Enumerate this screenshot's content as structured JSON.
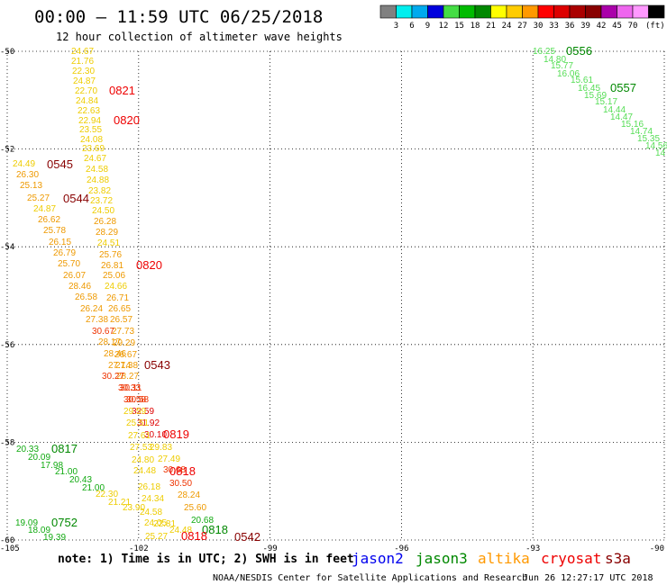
{
  "header": {
    "title": "00:00 – 11:59 UTC 06/25/2018",
    "subtitle": "12 hour collection of altimeter wave heights"
  },
  "colorbar": {
    "unit": "(ft)",
    "swatches": [
      "#808080",
      "#00eeee",
      "#00aaee",
      "#0000dd",
      "#44dd44",
      "#00bb00",
      "#008800",
      "#ffff00",
      "#ffcc00",
      "#ff9900",
      "#ff0000",
      "#dd0000",
      "#aa0000",
      "#880000",
      "#aa00aa",
      "#ee66ee",
      "#ff99ff",
      "#000000"
    ],
    "labels": [
      "3",
      "6",
      "9",
      "12",
      "15",
      "18",
      "21",
      "24",
      "27",
      "30",
      "33",
      "36",
      "39",
      "42",
      "45",
      "70"
    ]
  },
  "map": {
    "lon_range": [
      -105,
      -90
    ],
    "lat_range": [
      -60,
      -50
    ],
    "lon_ticks": [
      "-105",
      "-102",
      "-99",
      "-96",
      "-93",
      "-90"
    ],
    "lat_ticks": [
      "-50",
      "-52",
      "-54",
      "-56",
      "-58",
      "-60"
    ],
    "grid": "dotted"
  },
  "colors": {
    "jason2": "#0000ee",
    "jason3": "#008800",
    "altika": "#ff9900",
    "cryosat": "#ee0000",
    "s3a": "#880000",
    "band24": "#eecc00",
    "band27": "#ee9900",
    "band30": "#ee3300",
    "band33": "#dd0000",
    "band15": "#55dd55",
    "band18": "#11aa11"
  },
  "labels": [
    [
      "24.67",
      79,
      56,
      "band24"
    ],
    [
      "21.76",
      79,
      67,
      "band24"
    ],
    [
      "22.30",
      80,
      78,
      "band24"
    ],
    [
      "24.87",
      81,
      89,
      "band24"
    ],
    [
      "22.70",
      83,
      100,
      "band24"
    ],
    [
      "24.84",
      84,
      111,
      "band24"
    ],
    [
      "22.63",
      86,
      122,
      "band24"
    ],
    [
      "22.94",
      87,
      133,
      "band24"
    ],
    [
      "23.55",
      88,
      143,
      "band24"
    ],
    [
      "24.08",
      89,
      154,
      "band24"
    ],
    [
      "23.69",
      91,
      164,
      "band24"
    ],
    [
      "24.67",
      93,
      175,
      "band24"
    ],
    [
      "24.58",
      95,
      187,
      "band24"
    ],
    [
      "24.88",
      96,
      199,
      "band24"
    ],
    [
      "23.82",
      98,
      211,
      "band24"
    ],
    [
      "23.72",
      100,
      222,
      "band24"
    ],
    [
      "24.50",
      102,
      233,
      "band24"
    ],
    [
      "26.28",
      104,
      245,
      "band27"
    ],
    [
      "28.29",
      106,
      257,
      "band27"
    ],
    [
      "24.51",
      108,
      269,
      "band24"
    ],
    [
      "25.76",
      110,
      282,
      "band27"
    ],
    [
      "26.81",
      112,
      294,
      "band27"
    ],
    [
      "25.06",
      114,
      305,
      "band27"
    ],
    [
      "24.66",
      116,
      317,
      "band24"
    ],
    [
      "26.71",
      118,
      330,
      "band27"
    ],
    [
      "26.65",
      120,
      342,
      "band27"
    ],
    [
      "26.57",
      122,
      354,
      "band27"
    ],
    [
      "27.73",
      124,
      367,
      "band27"
    ],
    [
      "29.29",
      125,
      380,
      "band27"
    ],
    [
      "26.67",
      127,
      393,
      "band27"
    ],
    [
      "27.38",
      128,
      405,
      "band27"
    ],
    [
      "28.27",
      129,
      417,
      "band27"
    ],
    [
      "30.11",
      133,
      430,
      "band30"
    ],
    [
      "30.58",
      140,
      443,
      "band30"
    ],
    [
      "32.59",
      146,
      456,
      "band33"
    ],
    [
      "31.92",
      152,
      469,
      "band33"
    ],
    [
      "30.10",
      160,
      482,
      "band33"
    ],
    [
      "29.83",
      166,
      496,
      "band24"
    ],
    [
      "27.49",
      175,
      509,
      "band24"
    ],
    [
      "30.68",
      181,
      521,
      "band30"
    ],
    [
      "30.50",
      188,
      536,
      "band30"
    ],
    [
      "28.24",
      197,
      549,
      "band27"
    ],
    [
      "25.60",
      204,
      563,
      "band27"
    ],
    [
      "20.68",
      212,
      577,
      "band18"
    ],
    [
      "24.49",
      14,
      181,
      "band24"
    ],
    [
      "26.30",
      18,
      193,
      "band27"
    ],
    [
      "25.13",
      22,
      205,
      "band27"
    ],
    [
      "25.27",
      30,
      219,
      "band27"
    ],
    [
      "24.87",
      37,
      231,
      "band24"
    ],
    [
      "26.62",
      42,
      243,
      "band27"
    ],
    [
      "25.78",
      48,
      255,
      "band27"
    ],
    [
      "26.15",
      54,
      268,
      "band27"
    ],
    [
      "26.79",
      59,
      280,
      "band27"
    ],
    [
      "25.70",
      64,
      292,
      "band27"
    ],
    [
      "26.07",
      70,
      305,
      "band27"
    ],
    [
      "28.46",
      76,
      317,
      "band27"
    ],
    [
      "26.58",
      83,
      329,
      "band27"
    ],
    [
      "26.24",
      89,
      342,
      "band27"
    ],
    [
      "27.38",
      95,
      354,
      "band27"
    ],
    [
      "30.67",
      102,
      367,
      "band30"
    ],
    [
      "28.17",
      109,
      379,
      "band27"
    ],
    [
      "28.46",
      115,
      392,
      "band27"
    ],
    [
      "27.14",
      120,
      405,
      "band27"
    ],
    [
      "30.27",
      113,
      417,
      "band30"
    ],
    [
      "30.33",
      131,
      430,
      "band30"
    ],
    [
      "30.58",
      137,
      443,
      "band30"
    ],
    [
      "29.59",
      137,
      456,
      "band24"
    ],
    [
      "25.51",
      140,
      469,
      "band24"
    ],
    [
      "27.61",
      142,
      483,
      "band24"
    ],
    [
      "27.53",
      144,
      496,
      "band24"
    ],
    [
      "24.80",
      146,
      510,
      "band24"
    ],
    [
      "24.48",
      148,
      522,
      "band24"
    ],
    [
      "26.18",
      153,
      540,
      "band24"
    ],
    [
      "24.34",
      157,
      553,
      "band24"
    ],
    [
      "22.30",
      106,
      548,
      "band24"
    ],
    [
      "21.21",
      120,
      557,
      "band24"
    ],
    [
      "23.90",
      136,
      563,
      "band24"
    ],
    [
      "24.58",
      155,
      568,
      "band24"
    ],
    [
      "24.05",
      160,
      580,
      "band24"
    ],
    [
      "22.81",
      170,
      581,
      "band24"
    ],
    [
      "25.27",
      161,
      595,
      "band24"
    ],
    [
      "24.48",
      188,
      588,
      "band24"
    ],
    [
      "20.33",
      18,
      498,
      "band18"
    ],
    [
      "20.09",
      31,
      507,
      "band18"
    ],
    [
      "17.98",
      45,
      516,
      "band18"
    ],
    [
      "21.00",
      61,
      523,
      "band18"
    ],
    [
      "20.43",
      77,
      532,
      "band18"
    ],
    [
      "21.00",
      91,
      541,
      "band18"
    ],
    [
      "19.09",
      17,
      580,
      "band18"
    ],
    [
      "18.09",
      31,
      588,
      "band18"
    ],
    [
      "19.39",
      48,
      596,
      "band18"
    ],
    [
      "16.25",
      591,
      56,
      "band15"
    ],
    [
      "14.80",
      603,
      65,
      "band15"
    ],
    [
      "15.77",
      611,
      72,
      "band15"
    ],
    [
      "16.06",
      618,
      81,
      "band15"
    ],
    [
      "15.61",
      633,
      88,
      "band15"
    ],
    [
      "16.45",
      641,
      97,
      "band15"
    ],
    [
      "15.69",
      648,
      105,
      "band15"
    ],
    [
      "15.17",
      660,
      112,
      "band15"
    ],
    [
      "14.44",
      669,
      121,
      "band15"
    ],
    [
      "14.47",
      677,
      129,
      "band15"
    ],
    [
      "15.16",
      689,
      137,
      "band15"
    ],
    [
      "14.74",
      699,
      145,
      "band15"
    ],
    [
      "15.35",
      707,
      153,
      "band15"
    ],
    [
      "14.56",
      716,
      161,
      "band15"
    ],
    [
      "14",
      727,
      169,
      "band15"
    ]
  ],
  "times": [
    [
      "0821",
      121,
      100,
      "cryosat"
    ],
    [
      "0820",
      126,
      133,
      "cryosat"
    ],
    [
      "0545",
      52,
      182,
      "s3a"
    ],
    [
      "0544",
      70,
      220,
      "s3a"
    ],
    [
      "0820",
      151,
      294,
      "cryosat"
    ],
    [
      "0543",
      160,
      405,
      "s3a"
    ],
    [
      "0819",
      181,
      482,
      "cryosat"
    ],
    [
      "0818",
      188,
      523,
      "cryosat"
    ],
    [
      "0817",
      57,
      498,
      "jason3"
    ],
    [
      "0752",
      57,
      580,
      "jason3"
    ],
    [
      "0818",
      224,
      588,
      "jason3"
    ],
    [
      "0818",
      201,
      595,
      "cryosat"
    ],
    [
      "0542",
      260,
      596,
      "s3a"
    ],
    [
      "0556",
      628,
      56,
      "jason3"
    ],
    [
      "0557",
      677,
      97,
      "jason3"
    ]
  ],
  "legend": {
    "note": "note: 1) Time is in UTC; 2) SWH is in feet",
    "satellites": [
      {
        "name": "jason2",
        "color": "#0000ee"
      },
      {
        "name": "jason3",
        "color": "#008800"
      },
      {
        "name": "altika",
        "color": "#ff9900"
      },
      {
        "name": "cryosat",
        "color": "#ee0000"
      },
      {
        "name": "s3a",
        "color": "#880000"
      }
    ]
  },
  "footer": {
    "center": "NOAA/NESDIS Center for Satellite Applications and Research",
    "timestamp": "Jun 26 12:27:17 UTC 2018"
  }
}
